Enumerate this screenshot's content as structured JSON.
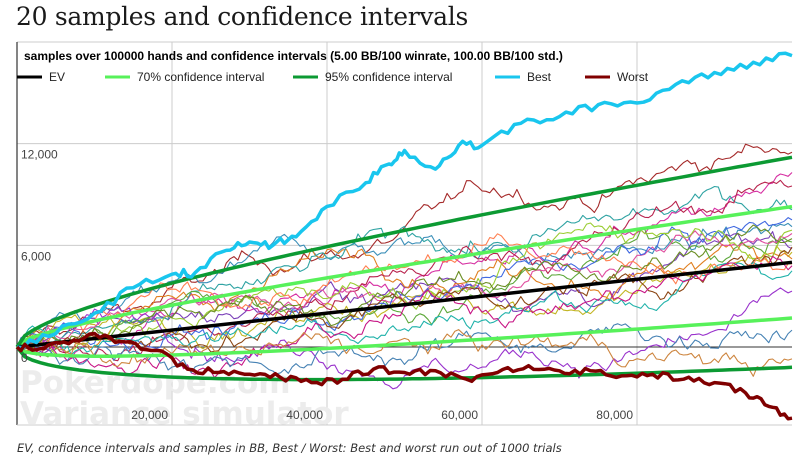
{
  "page": {
    "title": "20 samples and confidence intervals",
    "caption": "EV, confidence intervals and samples in BB, Best / Worst: Best and worst run out of 1000 trials"
  },
  "watermark": {
    "line1": "Pokerdope.com",
    "line2": "Variance simulator"
  },
  "chart_data": {
    "type": "line",
    "title": "samples over 100000 hands and confidence intervals (5.00 BB/100 winrate, 100.00 BB/100 std.)",
    "xlabel": "",
    "ylabel": "",
    "xlim": [
      0,
      100000
    ],
    "ylim": [
      -4600,
      18000
    ],
    "grid": true,
    "legend_position": "top-left",
    "x_ticks": [
      {
        "value": 20000,
        "label": "20,000"
      },
      {
        "value": 40000,
        "label": "40,000"
      },
      {
        "value": 60000,
        "label": "60,000"
      },
      {
        "value": 80000,
        "label": "80,000"
      }
    ],
    "y_ticks": [
      {
        "value": 0,
        "label": "0"
      },
      {
        "value": 6000,
        "label": "6,000"
      },
      {
        "value": 12000,
        "label": "12,000"
      }
    ],
    "params": {
      "hands": 100000,
      "winrate_bb_per_100": 5.0,
      "std_bb_per_100": 100.0,
      "samples": 20,
      "trials": 1000
    },
    "legend": [
      {
        "key": "ev",
        "label": "EV",
        "color": "#000000"
      },
      {
        "key": "ci70",
        "label": "70% confidence interval",
        "color": "#57f15a"
      },
      {
        "key": "ci95",
        "label": "95% confidence interval",
        "color": "#0c9a33"
      },
      {
        "key": "best",
        "label": "Best",
        "color": "#19c6ee"
      },
      {
        "key": "worst",
        "label": "Worst",
        "color": "#800000"
      }
    ],
    "ev": {
      "x": [
        0,
        100000
      ],
      "y": [
        0,
        5000
      ]
    },
    "ci70": {
      "z": 1.04
    },
    "ci95": {
      "z": 1.96
    },
    "best": {
      "name": "Best",
      "x": [
        0,
        5000,
        10000,
        15000,
        20000,
        23000,
        27000,
        30000,
        33000,
        36000,
        40000,
        45000,
        48000,
        50000,
        54000,
        57000,
        60000,
        65000,
        70000,
        75000,
        80000,
        85000,
        90000,
        95000,
        100000
      ],
      "y": [
        0,
        800,
        2000,
        3500,
        4300,
        4400,
        5700,
        6200,
        6000,
        6500,
        8300,
        9700,
        10800,
        11600,
        10500,
        11900,
        11900,
        13200,
        13600,
        14300,
        14400,
        15500,
        16200,
        16800,
        17200
      ]
    },
    "worst": {
      "name": "Worst",
      "x": [
        0,
        3000,
        6000,
        10000,
        14000,
        18000,
        22000,
        26000,
        30000,
        34000,
        38000,
        42000,
        46000,
        50000,
        54000,
        58000,
        62000,
        66000,
        70000,
        74000,
        78000,
        82000,
        86000,
        90000,
        94000,
        97000,
        100000
      ],
      "y": [
        0,
        -100,
        300,
        800,
        300,
        -200,
        -1300,
        -1500,
        -1600,
        -1800,
        -2100,
        -1900,
        -1300,
        -1500,
        -1400,
        -1900,
        -1500,
        -1100,
        -1400,
        -1400,
        -1700,
        -1600,
        -1900,
        -2100,
        -2700,
        -3500,
        -4200
      ]
    },
    "samples": {
      "count": 20,
      "colors": [
        "#a52a2a",
        "#d62fa2",
        "#3b8fb8",
        "#c2b523",
        "#7a3fb8",
        "#e07f20",
        "#2fa3a3",
        "#b8234d",
        "#5da83a",
        "#e04fa0",
        "#4169e1",
        "#9acd32",
        "#8b4513",
        "#20b2aa",
        "#9932cc",
        "#ff7f50",
        "#6b8e23",
        "#c71585",
        "#4682b4",
        "#cd853f"
      ],
      "final_values": [
        11500,
        10300,
        7100,
        5600,
        5800,
        5200,
        8100,
        9500,
        6200,
        6700,
        7500,
        6900,
        5900,
        4500,
        3300,
        4900,
        6400,
        4800,
        1000,
        -700
      ]
    }
  }
}
